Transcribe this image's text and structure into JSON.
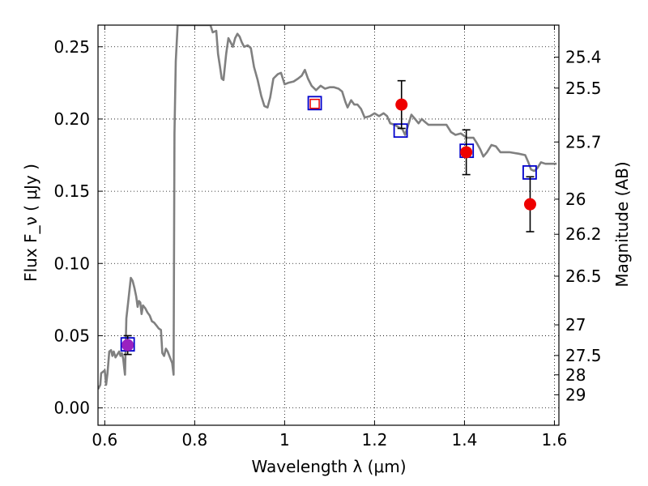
{
  "chart_data": {
    "type": "scatter",
    "xlabel": "Wavelength  λ (μm)",
    "ylabel": "Flux  F_ν  ( μJy )",
    "y2label": "Magnitude (AB)",
    "xlim": [
      0.585,
      1.61
    ],
    "ylim": [
      -0.012,
      0.265
    ],
    "grid": true,
    "x_ticks": [
      {
        "value": 0.6,
        "label": "0.6"
      },
      {
        "value": 0.8,
        "label": "0.8"
      },
      {
        "value": 1.0,
        "label": "1"
      },
      {
        "value": 1.2,
        "label": "1.2"
      },
      {
        "value": 1.4,
        "label": "1.4"
      },
      {
        "value": 1.6,
        "label": "1.6"
      }
    ],
    "y_ticks": [
      {
        "value": 0.0,
        "label": "0.00"
      },
      {
        "value": 0.05,
        "label": "0.05"
      },
      {
        "value": 0.1,
        "label": "0.10"
      },
      {
        "value": 0.15,
        "label": "0.15"
      },
      {
        "value": 0.2,
        "label": "0.20"
      },
      {
        "value": 0.25,
        "label": "0.25"
      }
    ],
    "y2_ticks": [
      {
        "flux": 0.2428,
        "label": "25.4"
      },
      {
        "flux": 0.2214,
        "label": "25.5"
      },
      {
        "flux": 0.1841,
        "label": "25.7"
      },
      {
        "flux": 0.1445,
        "label": "26"
      },
      {
        "flux": 0.1202,
        "label": "26.2"
      },
      {
        "flux": 0.0912,
        "label": "26.5"
      },
      {
        "flux": 0.0575,
        "label": "27"
      },
      {
        "flux": 0.0363,
        "label": "27.5"
      },
      {
        "flux": 0.0229,
        "label": "28"
      },
      {
        "flux": 0.0091,
        "label": "29"
      }
    ],
    "series": [
      {
        "kind": "line",
        "color": "#808080",
        "points": [
          [
            0.585,
            0.013
          ],
          [
            0.59,
            0.016
          ],
          [
            0.592,
            0.024
          ],
          [
            0.6,
            0.026
          ],
          [
            0.603,
            0.016
          ],
          [
            0.606,
            0.024
          ],
          [
            0.61,
            0.039
          ],
          [
            0.614,
            0.04
          ],
          [
            0.617,
            0.036
          ],
          [
            0.62,
            0.039
          ],
          [
            0.624,
            0.035
          ],
          [
            0.628,
            0.037
          ],
          [
            0.632,
            0.039
          ],
          [
            0.635,
            0.036
          ],
          [
            0.638,
            0.038
          ],
          [
            0.641,
            0.034
          ],
          [
            0.645,
            0.023
          ],
          [
            0.648,
            0.062
          ],
          [
            0.652,
            0.073
          ],
          [
            0.658,
            0.09
          ],
          [
            0.662,
            0.088
          ],
          [
            0.666,
            0.083
          ],
          [
            0.67,
            0.077
          ],
          [
            0.673,
            0.07
          ],
          [
            0.676,
            0.074
          ],
          [
            0.679,
            0.073
          ],
          [
            0.682,
            0.065
          ],
          [
            0.685,
            0.071
          ],
          [
            0.69,
            0.069
          ],
          [
            0.695,
            0.066
          ],
          [
            0.7,
            0.064
          ],
          [
            0.705,
            0.06
          ],
          [
            0.71,
            0.059
          ],
          [
            0.715,
            0.057
          ],
          [
            0.72,
            0.055
          ],
          [
            0.725,
            0.054
          ],
          [
            0.728,
            0.038
          ],
          [
            0.732,
            0.036
          ],
          [
            0.736,
            0.041
          ],
          [
            0.74,
            0.039
          ],
          [
            0.745,
            0.035
          ],
          [
            0.75,
            0.031
          ],
          [
            0.753,
            0.023
          ],
          [
            0.755,
            0.19
          ],
          [
            0.758,
            0.24
          ],
          [
            0.762,
            0.265
          ],
          [
            0.8,
            0.265
          ],
          [
            0.82,
            0.265
          ],
          [
            0.835,
            0.265
          ],
          [
            0.84,
            0.26
          ],
          [
            0.848,
            0.261
          ],
          [
            0.852,
            0.245
          ],
          [
            0.856,
            0.237
          ],
          [
            0.86,
            0.228
          ],
          [
            0.864,
            0.227
          ],
          [
            0.87,
            0.245
          ],
          [
            0.875,
            0.256
          ],
          [
            0.88,
            0.253
          ],
          [
            0.885,
            0.25
          ],
          [
            0.89,
            0.256
          ],
          [
            0.895,
            0.259
          ],
          [
            0.9,
            0.257
          ],
          [
            0.905,
            0.253
          ],
          [
            0.91,
            0.25
          ],
          [
            0.918,
            0.251
          ],
          [
            0.925,
            0.249
          ],
          [
            0.932,
            0.236
          ],
          [
            0.94,
            0.227
          ],
          [
            0.948,
            0.216
          ],
          [
            0.955,
            0.209
          ],
          [
            0.962,
            0.208
          ],
          [
            0.968,
            0.215
          ],
          [
            0.975,
            0.228
          ],
          [
            0.985,
            0.231
          ],
          [
            0.992,
            0.232
          ],
          [
            1.0,
            0.224
          ],
          [
            1.008,
            0.225
          ],
          [
            1.02,
            0.226
          ],
          [
            1.03,
            0.228
          ],
          [
            1.038,
            0.23
          ],
          [
            1.045,
            0.234
          ],
          [
            1.052,
            0.228
          ],
          [
            1.06,
            0.223
          ],
          [
            1.07,
            0.22
          ],
          [
            1.08,
            0.223
          ],
          [
            1.09,
            0.221
          ],
          [
            1.1,
            0.222
          ],
          [
            1.11,
            0.222
          ],
          [
            1.12,
            0.221
          ],
          [
            1.128,
            0.219
          ],
          [
            1.135,
            0.212
          ],
          [
            1.14,
            0.208
          ],
          [
            1.148,
            0.213
          ],
          [
            1.155,
            0.21
          ],
          [
            1.162,
            0.21
          ],
          [
            1.17,
            0.207
          ],
          [
            1.178,
            0.201
          ],
          [
            1.19,
            0.202
          ],
          [
            1.2,
            0.204
          ],
          [
            1.21,
            0.202
          ],
          [
            1.22,
            0.204
          ],
          [
            1.228,
            0.202
          ],
          [
            1.235,
            0.197
          ],
          [
            1.245,
            0.196
          ],
          [
            1.255,
            0.194
          ],
          [
            1.262,
            0.193
          ],
          [
            1.268,
            0.189
          ],
          [
            1.274,
            0.195
          ],
          [
            1.282,
            0.203
          ],
          [
            1.29,
            0.2
          ],
          [
            1.298,
            0.197
          ],
          [
            1.305,
            0.2
          ],
          [
            1.312,
            0.198
          ],
          [
            1.32,
            0.196
          ],
          [
            1.34,
            0.196
          ],
          [
            1.36,
            0.196
          ],
          [
            1.37,
            0.191
          ],
          [
            1.38,
            0.189
          ],
          [
            1.392,
            0.19
          ],
          [
            1.405,
            0.187
          ],
          [
            1.42,
            0.187
          ],
          [
            1.428,
            0.183
          ],
          [
            1.435,
            0.179
          ],
          [
            1.442,
            0.174
          ],
          [
            1.45,
            0.177
          ],
          [
            1.46,
            0.182
          ],
          [
            1.47,
            0.181
          ],
          [
            1.48,
            0.177
          ],
          [
            1.5,
            0.177
          ],
          [
            1.52,
            0.176
          ],
          [
            1.535,
            0.175
          ],
          [
            1.542,
            0.17
          ],
          [
            1.548,
            0.165
          ],
          [
            1.555,
            0.164
          ],
          [
            1.562,
            0.166
          ],
          [
            1.57,
            0.17
          ],
          [
            1.58,
            0.169
          ],
          [
            1.59,
            0.169
          ],
          [
            1.605,
            0.169
          ]
        ]
      },
      {
        "kind": "open-squares",
        "color": "#0000cc",
        "points": [
          {
            "x": 0.651,
            "y": 0.044,
            "color": "#0000cc"
          },
          {
            "x": 1.067,
            "y": 0.211,
            "color": "#0000cc"
          },
          {
            "x": 1.258,
            "y": 0.192,
            "color": "#0000cc"
          },
          {
            "x": 1.405,
            "y": 0.178,
            "color": "#0000cc"
          },
          {
            "x": 1.545,
            "y": 0.163,
            "color": "#0000cc"
          }
        ]
      },
      {
        "kind": "filled-circles",
        "color": "#ee0000",
        "points": [
          {
            "x": 0.651,
            "y": 0.0435,
            "yerr": 0.0065,
            "color": "#9a22c0"
          },
          {
            "x": 1.26,
            "y": 0.21,
            "yerr": 0.0165,
            "color": "#ee0000"
          },
          {
            "x": 1.404,
            "y": 0.177,
            "yerr": 0.0155,
            "color": "#ee0000"
          },
          {
            "x": 1.546,
            "y": 0.141,
            "yerr": 0.019,
            "color": "#ee0000"
          }
        ]
      }
    ],
    "upper_limit_marker": {
      "x": 1.067,
      "y": 0.2105,
      "color": "#ee0000"
    }
  }
}
